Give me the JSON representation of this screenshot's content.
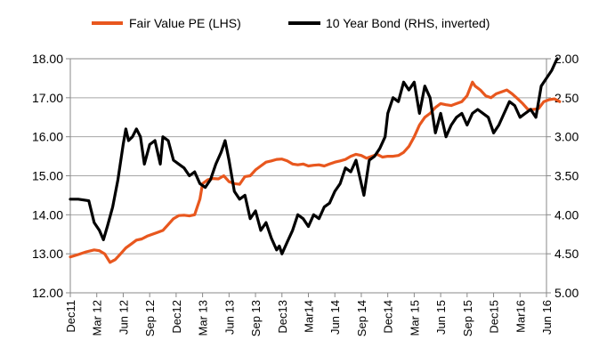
{
  "chart_data": {
    "type": "line",
    "title": "",
    "legend": [
      {
        "name": "Fair Value PE (LHS)",
        "color": "#e8571e"
      },
      {
        "name": "10 Year Bond (RHS, inverted)",
        "color": "#000000"
      }
    ],
    "x_ticks": [
      "Dec11",
      "Mar 12",
      "Jun 12",
      "Sep 12",
      "Dec12",
      "Mar 13",
      "Jun 13",
      "Sep 13",
      "Dec13",
      "Mar14",
      "Jun 14",
      "Sep 14",
      "Dec14",
      "Mar 15",
      "Jun 15",
      "Sep 15",
      "Dec15",
      "Mar16",
      "Jun 16"
    ],
    "x_range": [
      "Dec 2011",
      "Jun 2016"
    ],
    "y_left": {
      "min": 12,
      "max": 18,
      "step": 1,
      "labels": [
        "12.00",
        "13.00",
        "14.00",
        "15.00",
        "16.00",
        "17.00",
        "18.00"
      ]
    },
    "y_right": {
      "min": 2.0,
      "max": 5.0,
      "inverted": true,
      "labels": [
        "2.00",
        "2.50",
        "3.00",
        "3.50",
        "4.00",
        "4.50",
        "5.00"
      ]
    },
    "grid": true,
    "legend_position": "top",
    "series": [
      {
        "name": "Fair Value PE (LHS)",
        "axis": "left",
        "color": "#e8571e",
        "points": [
          [
            0,
            12.92
          ],
          [
            0.3,
            12.98
          ],
          [
            0.6,
            13.05
          ],
          [
            0.9,
            13.1
          ],
          [
            1.1,
            13.08
          ],
          [
            1.3,
            13.0
          ],
          [
            1.5,
            12.78
          ],
          [
            1.7,
            12.85
          ],
          [
            1.9,
            13.0
          ],
          [
            2.1,
            13.15
          ],
          [
            2.3,
            13.25
          ],
          [
            2.5,
            13.35
          ],
          [
            2.7,
            13.38
          ],
          [
            2.9,
            13.45
          ],
          [
            3.1,
            13.5
          ],
          [
            3.3,
            13.55
          ],
          [
            3.5,
            13.6
          ],
          [
            3.7,
            13.75
          ],
          [
            3.9,
            13.9
          ],
          [
            4.1,
            13.98
          ],
          [
            4.3,
            13.99
          ],
          [
            4.5,
            13.97
          ],
          [
            4.7,
            14.0
          ],
          [
            4.9,
            14.4
          ],
          [
            5.0,
            14.8
          ],
          [
            5.2,
            14.9
          ],
          [
            5.4,
            14.93
          ],
          [
            5.6,
            14.92
          ],
          [
            5.8,
            15.0
          ],
          [
            6.0,
            14.85
          ],
          [
            6.2,
            14.8
          ],
          [
            6.4,
            14.78
          ],
          [
            6.6,
            14.98
          ],
          [
            6.8,
            15.0
          ],
          [
            7.0,
            15.15
          ],
          [
            7.2,
            15.25
          ],
          [
            7.4,
            15.35
          ],
          [
            7.6,
            15.38
          ],
          [
            7.8,
            15.42
          ],
          [
            8.0,
            15.43
          ],
          [
            8.2,
            15.38
          ],
          [
            8.4,
            15.3
          ],
          [
            8.6,
            15.28
          ],
          [
            8.8,
            15.3
          ],
          [
            9.0,
            15.25
          ],
          [
            9.2,
            15.27
          ],
          [
            9.4,
            15.28
          ],
          [
            9.6,
            15.25
          ],
          [
            9.8,
            15.3
          ],
          [
            10.0,
            15.35
          ],
          [
            10.2,
            15.38
          ],
          [
            10.4,
            15.42
          ],
          [
            10.6,
            15.5
          ],
          [
            10.8,
            15.55
          ],
          [
            11.0,
            15.52
          ],
          [
            11.2,
            15.45
          ],
          [
            11.4,
            15.5
          ],
          [
            11.6,
            15.55
          ],
          [
            11.8,
            15.48
          ],
          [
            12.0,
            15.5
          ],
          [
            12.2,
            15.5
          ],
          [
            12.4,
            15.52
          ],
          [
            12.6,
            15.6
          ],
          [
            12.8,
            15.75
          ],
          [
            13.0,
            16.0
          ],
          [
            13.2,
            16.3
          ],
          [
            13.4,
            16.5
          ],
          [
            13.6,
            16.6
          ],
          [
            13.8,
            16.75
          ],
          [
            14.0,
            16.85
          ],
          [
            14.2,
            16.82
          ],
          [
            14.4,
            16.8
          ],
          [
            14.6,
            16.85
          ],
          [
            14.8,
            16.9
          ],
          [
            15.0,
            17.05
          ],
          [
            15.2,
            17.4
          ],
          [
            15.3,
            17.3
          ],
          [
            15.5,
            17.2
          ],
          [
            15.7,
            17.05
          ],
          [
            15.9,
            17.0
          ],
          [
            16.1,
            17.1
          ],
          [
            16.3,
            17.15
          ],
          [
            16.5,
            17.2
          ],
          [
            16.7,
            17.1
          ],
          [
            16.9,
            16.98
          ],
          [
            17.1,
            16.85
          ],
          [
            17.3,
            16.7
          ],
          [
            17.5,
            16.7
          ],
          [
            17.7,
            16.72
          ],
          [
            17.9,
            16.9
          ],
          [
            18.1,
            16.95
          ],
          [
            18.3,
            16.97
          ],
          [
            18.5,
            16.9
          ]
        ]
      },
      {
        "name": "10 Year Bond (RHS, inverted)",
        "axis": "right",
        "color": "#000000",
        "points": [
          [
            0,
            3.8
          ],
          [
            0.3,
            3.8
          ],
          [
            0.7,
            3.82
          ],
          [
            0.9,
            4.1
          ],
          [
            1.1,
            4.2
          ],
          [
            1.25,
            4.32
          ],
          [
            1.4,
            4.15
          ],
          [
            1.6,
            3.9
          ],
          [
            1.8,
            3.55
          ],
          [
            2.0,
            3.1
          ],
          [
            2.1,
            2.9
          ],
          [
            2.2,
            3.05
          ],
          [
            2.35,
            3.0
          ],
          [
            2.5,
            2.9
          ],
          [
            2.65,
            3.0
          ],
          [
            2.8,
            3.35
          ],
          [
            3.0,
            3.1
          ],
          [
            3.2,
            3.05
          ],
          [
            3.4,
            3.35
          ],
          [
            3.5,
            3.0
          ],
          [
            3.7,
            3.05
          ],
          [
            3.9,
            3.3
          ],
          [
            4.1,
            3.35
          ],
          [
            4.3,
            3.4
          ],
          [
            4.5,
            3.5
          ],
          [
            4.7,
            3.45
          ],
          [
            4.9,
            3.6
          ],
          [
            5.1,
            3.65
          ],
          [
            5.3,
            3.55
          ],
          [
            5.5,
            3.35
          ],
          [
            5.7,
            3.2
          ],
          [
            5.85,
            3.05
          ],
          [
            6.0,
            3.3
          ],
          [
            6.2,
            3.7
          ],
          [
            6.4,
            3.8
          ],
          [
            6.6,
            3.75
          ],
          [
            6.8,
            4.05
          ],
          [
            7.0,
            3.95
          ],
          [
            7.2,
            4.2
          ],
          [
            7.4,
            4.1
          ],
          [
            7.6,
            4.3
          ],
          [
            7.8,
            4.45
          ],
          [
            7.9,
            4.4
          ],
          [
            8.0,
            4.5
          ],
          [
            8.2,
            4.35
          ],
          [
            8.4,
            4.2
          ],
          [
            8.6,
            4.0
          ],
          [
            8.8,
            4.05
          ],
          [
            9.0,
            4.15
          ],
          [
            9.2,
            4.0
          ],
          [
            9.4,
            4.05
          ],
          [
            9.6,
            3.9
          ],
          [
            9.8,
            3.85
          ],
          [
            10.0,
            3.7
          ],
          [
            10.2,
            3.6
          ],
          [
            10.4,
            3.4
          ],
          [
            10.6,
            3.45
          ],
          [
            10.8,
            3.3
          ],
          [
            11.0,
            3.6
          ],
          [
            11.1,
            3.75
          ],
          [
            11.3,
            3.3
          ],
          [
            11.5,
            3.25
          ],
          [
            11.7,
            3.15
          ],
          [
            11.9,
            3.0
          ],
          [
            12.0,
            2.7
          ],
          [
            12.2,
            2.5
          ],
          [
            12.4,
            2.55
          ],
          [
            12.6,
            2.3
          ],
          [
            12.8,
            2.4
          ],
          [
            13.0,
            2.3
          ],
          [
            13.2,
            2.7
          ],
          [
            13.4,
            2.35
          ],
          [
            13.6,
            2.5
          ],
          [
            13.8,
            2.95
          ],
          [
            14.0,
            2.7
          ],
          [
            14.2,
            3.0
          ],
          [
            14.4,
            2.85
          ],
          [
            14.6,
            2.75
          ],
          [
            14.8,
            2.7
          ],
          [
            15.0,
            2.85
          ],
          [
            15.2,
            2.7
          ],
          [
            15.4,
            2.65
          ],
          [
            15.6,
            2.7
          ],
          [
            15.8,
            2.75
          ],
          [
            16.0,
            2.95
          ],
          [
            16.2,
            2.85
          ],
          [
            16.4,
            2.7
          ],
          [
            16.6,
            2.55
          ],
          [
            16.8,
            2.6
          ],
          [
            17.0,
            2.75
          ],
          [
            17.2,
            2.7
          ],
          [
            17.4,
            2.65
          ],
          [
            17.6,
            2.75
          ],
          [
            17.8,
            2.35
          ],
          [
            18.0,
            2.25
          ],
          [
            18.2,
            2.15
          ],
          [
            18.4,
            2.0
          ]
        ]
      }
    ]
  }
}
